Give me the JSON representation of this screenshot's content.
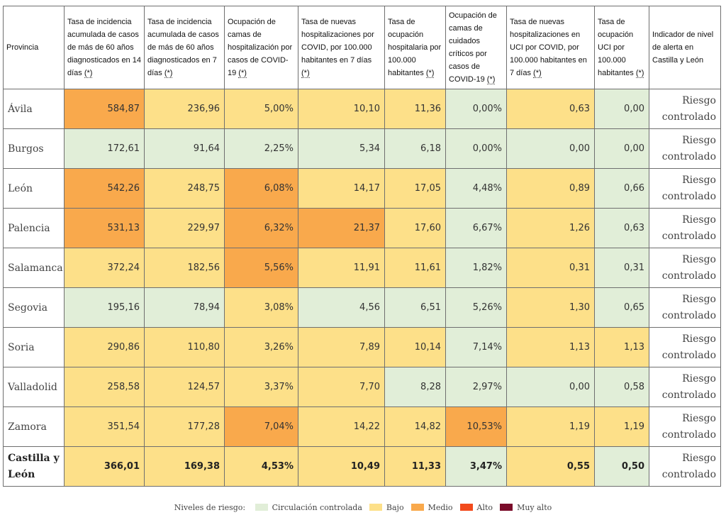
{
  "columns": [
    {
      "text": "Provincia",
      "ast": ""
    },
    {
      "text": "Tasa de incidencia acumulada de casos de más de 60 años diagnosticados en 14 días ",
      "ast": "(*)"
    },
    {
      "text": "Tasa de incidencia acumulada de casos de más de 60 años diagnosticados en 7 días ",
      "ast": "(*)"
    },
    {
      "text": "Ocupación de camas de hospitalización por casos de COVID-19 ",
      "ast": "(*)"
    },
    {
      "text": "Tasa de nuevas hospitalizaciones por COVID, por 100.000 habitantes en 7 días ",
      "ast": "(*)"
    },
    {
      "text": "Tasa de ocupación hospitalaria por 100.000 habitantes ",
      "ast": "(*)"
    },
    {
      "text": "Ocupación de camas de cuidados críticos por casos de COVID-19 ",
      "ast": "(*)"
    },
    {
      "text": "Tasa de nuevas hospitalizaciones en UCI por COVID, por 100.000 habitantes en 7 días ",
      "ast": "(*)"
    },
    {
      "text": "Tasa de ocupación UCI por 100.000 habitantes ",
      "ast": "(*)"
    },
    {
      "text": "Indicador de nivel de alerta en Castilla y León",
      "ast": ""
    }
  ],
  "rows": [
    {
      "name": "Ávila",
      "total": false,
      "alert": "Riesgo controlado",
      "cells": [
        {
          "v": "584,87",
          "lvl": "medio"
        },
        {
          "v": "236,96",
          "lvl": "bajo"
        },
        {
          "v": "5,00%",
          "lvl": "bajo"
        },
        {
          "v": "10,10",
          "lvl": "bajo"
        },
        {
          "v": "11,36",
          "lvl": "bajo"
        },
        {
          "v": "0,00%",
          "lvl": "verde"
        },
        {
          "v": "0,63",
          "lvl": "bajo"
        },
        {
          "v": "0,00",
          "lvl": "verde"
        }
      ]
    },
    {
      "name": "Burgos",
      "total": false,
      "alert": "Riesgo controlado",
      "cells": [
        {
          "v": "172,61",
          "lvl": "verde"
        },
        {
          "v": "91,64",
          "lvl": "verde"
        },
        {
          "v": "2,25%",
          "lvl": "verde"
        },
        {
          "v": "5,34",
          "lvl": "verde"
        },
        {
          "v": "6,18",
          "lvl": "verde"
        },
        {
          "v": "0,00%",
          "lvl": "verde"
        },
        {
          "v": "0,00",
          "lvl": "verde"
        },
        {
          "v": "0,00",
          "lvl": "verde"
        }
      ]
    },
    {
      "name": "León",
      "total": false,
      "alert": "Riesgo controlado",
      "cells": [
        {
          "v": "542,26",
          "lvl": "medio"
        },
        {
          "v": "248,75",
          "lvl": "bajo"
        },
        {
          "v": "6,08%",
          "lvl": "medio"
        },
        {
          "v": "14,17",
          "lvl": "bajo"
        },
        {
          "v": "17,05",
          "lvl": "bajo"
        },
        {
          "v": "4,48%",
          "lvl": "verde"
        },
        {
          "v": "0,89",
          "lvl": "bajo"
        },
        {
          "v": "0,66",
          "lvl": "verde"
        }
      ]
    },
    {
      "name": "Palencia",
      "total": false,
      "alert": "Riesgo controlado",
      "cells": [
        {
          "v": "531,13",
          "lvl": "medio"
        },
        {
          "v": "229,97",
          "lvl": "bajo"
        },
        {
          "v": "6,32%",
          "lvl": "medio"
        },
        {
          "v": "21,37",
          "lvl": "medio"
        },
        {
          "v": "17,60",
          "lvl": "bajo"
        },
        {
          "v": "6,67%",
          "lvl": "verde"
        },
        {
          "v": "1,26",
          "lvl": "bajo"
        },
        {
          "v": "0,63",
          "lvl": "verde"
        }
      ]
    },
    {
      "name": "Salamanca",
      "total": false,
      "alert": "Riesgo controlado",
      "cells": [
        {
          "v": "372,24",
          "lvl": "bajo"
        },
        {
          "v": "182,56",
          "lvl": "bajo"
        },
        {
          "v": "5,56%",
          "lvl": "medio"
        },
        {
          "v": "11,91",
          "lvl": "bajo"
        },
        {
          "v": "11,61",
          "lvl": "bajo"
        },
        {
          "v": "1,82%",
          "lvl": "verde"
        },
        {
          "v": "0,31",
          "lvl": "bajo"
        },
        {
          "v": "0,31",
          "lvl": "verde"
        }
      ]
    },
    {
      "name": "Segovia",
      "total": false,
      "alert": "Riesgo controlado",
      "cells": [
        {
          "v": "195,16",
          "lvl": "verde"
        },
        {
          "v": "78,94",
          "lvl": "verde"
        },
        {
          "v": "3,08%",
          "lvl": "bajo"
        },
        {
          "v": "4,56",
          "lvl": "verde"
        },
        {
          "v": "6,51",
          "lvl": "verde"
        },
        {
          "v": "5,26%",
          "lvl": "verde"
        },
        {
          "v": "1,30",
          "lvl": "bajo"
        },
        {
          "v": "0,65",
          "lvl": "verde"
        }
      ]
    },
    {
      "name": "Soria",
      "total": false,
      "alert": "Riesgo controlado",
      "cells": [
        {
          "v": "290,86",
          "lvl": "bajo"
        },
        {
          "v": "110,80",
          "lvl": "bajo"
        },
        {
          "v": "3,26%",
          "lvl": "bajo"
        },
        {
          "v": "7,89",
          "lvl": "bajo"
        },
        {
          "v": "10,14",
          "lvl": "bajo"
        },
        {
          "v": "7,14%",
          "lvl": "verde"
        },
        {
          "v": "1,13",
          "lvl": "bajo"
        },
        {
          "v": "1,13",
          "lvl": "bajo"
        }
      ]
    },
    {
      "name": "Valladolid",
      "total": false,
      "alert": "Riesgo controlado",
      "cells": [
        {
          "v": "258,58",
          "lvl": "bajo"
        },
        {
          "v": "124,57",
          "lvl": "bajo"
        },
        {
          "v": "3,37%",
          "lvl": "bajo"
        },
        {
          "v": "7,70",
          "lvl": "bajo"
        },
        {
          "v": "8,28",
          "lvl": "verde"
        },
        {
          "v": "2,97%",
          "lvl": "verde"
        },
        {
          "v": "0,00",
          "lvl": "verde"
        },
        {
          "v": "0,58",
          "lvl": "verde"
        }
      ]
    },
    {
      "name": "Zamora",
      "total": false,
      "alert": "Riesgo controlado",
      "cells": [
        {
          "v": "351,54",
          "lvl": "bajo"
        },
        {
          "v": "177,28",
          "lvl": "bajo"
        },
        {
          "v": "7,04%",
          "lvl": "medio"
        },
        {
          "v": "14,22",
          "lvl": "bajo"
        },
        {
          "v": "14,82",
          "lvl": "bajo"
        },
        {
          "v": "10,53%",
          "lvl": "medio"
        },
        {
          "v": "1,19",
          "lvl": "bajo"
        },
        {
          "v": "1,19",
          "lvl": "bajo"
        }
      ]
    },
    {
      "name": "Castilla y León",
      "total": true,
      "alert": "Riesgo controlado",
      "cells": [
        {
          "v": "366,01",
          "lvl": "bajo"
        },
        {
          "v": "169,38",
          "lvl": "bajo"
        },
        {
          "v": "4,53%",
          "lvl": "bajo"
        },
        {
          "v": "10,49",
          "lvl": "bajo"
        },
        {
          "v": "11,33",
          "lvl": "bajo"
        },
        {
          "v": "3,47%",
          "lvl": "verde"
        },
        {
          "v": "0,55",
          "lvl": "bajo"
        },
        {
          "v": "0,50",
          "lvl": "verde"
        }
      ]
    }
  ],
  "legend": {
    "title": "Niveles de riesgo:",
    "items": [
      {
        "key": "verde",
        "label": "Circulación controlada",
        "color": "#e1eed8"
      },
      {
        "key": "bajo",
        "label": "Bajo",
        "color": "#fde089"
      },
      {
        "key": "medio",
        "label": "Medio",
        "color": "#f9a94c"
      },
      {
        "key": "alto",
        "label": "Alto",
        "color": "#f24a1c"
      },
      {
        "key": "muyalto",
        "label": "Muy alto",
        "color": "#7a0c2a"
      }
    ]
  }
}
